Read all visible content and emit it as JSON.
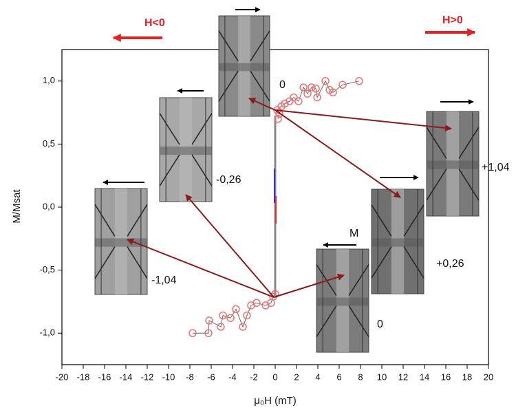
{
  "chart_data": {
    "type": "scatter",
    "xlabel": "μ₀H (mT)",
    "ylabel": "M/Msat",
    "xlim": [
      -20,
      20
    ],
    "ylim": [
      -1.25,
      1.25
    ],
    "xticks": [
      -20,
      -18,
      -16,
      -14,
      -12,
      -10,
      -8,
      -6,
      -4,
      -2,
      0,
      2,
      4,
      6,
      8,
      10,
      12,
      14,
      16,
      18,
      20
    ],
    "yticks": [
      {
        "value": 1.0,
        "label": "1,0"
      },
      {
        "value": 0.5,
        "label": "0,5"
      },
      {
        "value": 0.0,
        "label": "0,0"
      },
      {
        "value": -0.5,
        "label": "-0,5"
      },
      {
        "value": -1.0,
        "label": "-1,0"
      }
    ],
    "series": [
      {
        "color": "#f07070",
        "x": [
          0.26,
          0.39,
          0.19,
          0.58,
          0.9,
          1.35,
          1.74,
          2.19,
          2.65,
          3.03,
          3.42,
          3.81,
          3.94,
          4.71,
          5.1,
          5.42,
          6.32,
          7.87
        ],
        "values": [
          0.7,
          0.74,
          0.77,
          0.8,
          0.82,
          0.84,
          0.87,
          0.84,
          0.95,
          0.9,
          0.95,
          0.94,
          0.87,
          1.0,
          0.93,
          0.91,
          0.97,
          1.0
        ]
      },
      {
        "color": "#f07070",
        "x": [
          -7.74,
          -6.26,
          -6.19,
          -5.1,
          -4.9,
          -4.19,
          -3.68,
          -3.03,
          -2.65,
          -2.26,
          -1.74,
          -0.9,
          -0.39,
          -0.19,
          0.0
        ],
        "values": [
          -1.0,
          -1.0,
          -0.9,
          -0.95,
          -0.86,
          -0.88,
          -0.81,
          -0.95,
          -0.86,
          -0.78,
          -0.76,
          -0.78,
          -0.76,
          -0.71,
          -0.69
        ]
      }
    ],
    "annotations": [
      "H<0",
      "H>0",
      "0",
      "-0,26",
      "-1,04",
      "+1,04",
      "+0,26",
      "0",
      "M"
    ]
  }
}
